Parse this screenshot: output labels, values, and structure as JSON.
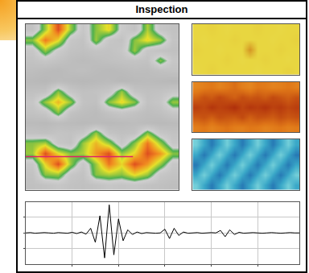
{
  "header": {
    "title": "Inspection"
  },
  "chart_data": [
    {
      "type": "heatmap",
      "xlim": [
        -0.5,
        11.5
      ],
      "ylim": [
        15.5,
        -0.5
      ],
      "zlim": [
        0,
        100
      ],
      "tick_labels": false,
      "cells": [
        [
          30,
          60,
          92,
          60,
          35,
          58,
          70,
          40,
          30,
          62,
          35,
          30
        ],
        [
          58,
          85,
          70,
          35,
          30,
          60,
          35,
          30,
          58,
          70,
          60,
          32
        ],
        [
          35,
          60,
          40,
          30,
          28,
          32,
          30,
          35,
          60,
          35,
          30,
          28
        ],
        [
          30,
          35,
          30,
          25,
          22,
          25,
          28,
          30,
          32,
          30,
          58,
          35
        ],
        [
          25,
          22,
          20,
          24,
          26,
          22,
          20,
          22,
          25,
          24,
          28,
          30
        ],
        [
          20,
          18,
          22,
          20,
          18,
          20,
          22,
          18,
          20,
          22,
          20,
          18
        ],
        [
          28,
          30,
          58,
          35,
          28,
          30,
          35,
          60,
          32,
          28,
          30,
          35
        ],
        [
          35,
          60,
          75,
          60,
          30,
          28,
          58,
          70,
          58,
          30,
          35,
          60
        ],
        [
          30,
          35,
          58,
          30,
          25,
          22,
          30,
          35,
          30,
          25,
          28,
          35
        ],
        [
          22,
          20,
          24,
          22,
          20,
          22,
          20,
          22,
          24,
          22,
          20,
          22
        ],
        [
          30,
          28,
          32,
          30,
          35,
          60,
          32,
          28,
          30,
          58,
          35,
          30
        ],
        [
          58,
          62,
          35,
          30,
          60,
          75,
          60,
          35,
          58,
          85,
          60,
          35
        ],
        [
          60,
          92,
          70,
          58,
          62,
          80,
          92,
          60,
          70,
          92,
          80,
          58
        ],
        [
          35,
          70,
          92,
          60,
          35,
          60,
          85,
          70,
          92,
          80,
          60,
          35
        ],
        [
          30,
          58,
          60,
          35,
          30,
          58,
          62,
          58,
          70,
          60,
          35,
          30
        ],
        [
          28,
          30,
          35,
          30,
          28,
          30,
          35,
          32,
          35,
          30,
          28,
          25
        ]
      ]
    },
    {
      "type": "heatmap",
      "xlim": [
        -0.5,
        13.5
      ],
      "ylim": [
        4.5,
        -0.5
      ],
      "zlim": [
        0,
        100
      ],
      "tick_labels": false,
      "cells": [
        [
          50,
          50,
          52,
          50,
          48,
          50,
          50,
          50,
          52,
          50,
          50,
          48,
          50,
          50
        ],
        [
          50,
          48,
          50,
          50,
          50,
          52,
          50,
          50,
          50,
          50,
          48,
          50,
          50,
          52
        ],
        [
          52,
          50,
          50,
          48,
          50,
          50,
          50,
          80,
          50,
          50,
          50,
          52,
          50,
          50
        ],
        [
          50,
          50,
          50,
          50,
          52,
          50,
          48,
          50,
          50,
          52,
          50,
          50,
          48,
          50
        ],
        [
          48,
          50,
          52,
          50,
          50,
          50,
          50,
          50,
          48,
          50,
          50,
          50,
          52,
          50
        ]
      ]
    },
    {
      "type": "heatmap",
      "xlim": [
        -0.5,
        13.5
      ],
      "ylim": [
        4.5,
        -0.5
      ],
      "zlim": [
        0,
        100
      ],
      "tick_labels": false,
      "cells": [
        [
          40,
          45,
          50,
          42,
          48,
          55,
          45,
          40,
          50,
          48,
          42,
          45,
          50,
          44
        ],
        [
          60,
          70,
          65,
          75,
          68,
          62,
          72,
          66,
          70,
          64,
          74,
          68,
          62,
          70
        ],
        [
          80,
          75,
          85,
          78,
          82,
          88,
          76,
          84,
          80,
          86,
          78,
          82,
          75,
          80
        ],
        [
          65,
          70,
          62,
          72,
          68,
          66,
          74,
          62,
          70,
          68,
          64,
          72,
          66,
          70
        ],
        [
          45,
          50,
          42,
          48,
          52,
          46,
          44,
          50,
          48,
          42,
          46,
          50,
          44,
          48
        ]
      ]
    },
    {
      "type": "heatmap",
      "xlim": [
        -0.5,
        13.5
      ],
      "ylim": [
        4.5,
        -0.5
      ],
      "zlim": [
        0,
        100
      ],
      "tick_labels": false,
      "cells": [
        [
          85,
          50,
          20,
          50,
          85,
          50,
          20,
          50,
          85,
          50,
          20,
          50,
          85,
          50
        ],
        [
          50,
          20,
          50,
          85,
          50,
          20,
          50,
          85,
          50,
          20,
          50,
          85,
          50,
          20
        ],
        [
          20,
          50,
          85,
          50,
          20,
          50,
          85,
          50,
          20,
          50,
          85,
          50,
          20,
          50
        ],
        [
          50,
          85,
          50,
          20,
          50,
          85,
          50,
          20,
          50,
          85,
          50,
          20,
          50,
          85
        ],
        [
          85,
          50,
          20,
          50,
          85,
          50,
          20,
          50,
          85,
          50,
          20,
          50,
          85,
          50
        ]
      ]
    },
    {
      "type": "line",
      "color": "#000000",
      "grid": true,
      "tick_labels": false,
      "xlim": [
        0,
        59
      ],
      "ylim": [
        -100,
        100
      ],
      "xticks": [
        10,
        20,
        30,
        40,
        50
      ],
      "yticks": [
        -50,
        0,
        50
      ],
      "x": [
        0,
        1,
        2,
        3,
        4,
        5,
        6,
        7,
        8,
        9,
        10,
        11,
        12,
        13,
        14,
        15,
        16,
        17,
        18,
        19,
        20,
        21,
        22,
        23,
        24,
        25,
        26,
        27,
        28,
        29,
        30,
        31,
        32,
        33,
        34,
        35,
        36,
        37,
        38,
        39,
        40,
        41,
        42,
        43,
        44,
        45,
        46,
        47,
        48,
        49,
        50,
        51,
        52,
        53,
        54,
        55,
        56,
        57,
        58,
        59
      ],
      "values": [
        0,
        1,
        -1,
        0,
        1,
        0,
        -1,
        1,
        0,
        -1,
        2,
        -2,
        3,
        -4,
        15,
        -30,
        55,
        -80,
        90,
        -70,
        45,
        -25,
        10,
        -5,
        3,
        -2,
        1,
        0,
        -1,
        0,
        12,
        -18,
        15,
        -8,
        3,
        -1,
        0,
        1,
        -1,
        0,
        1,
        0,
        8,
        -12,
        10,
        -5,
        2,
        -1,
        0,
        1,
        0,
        -1,
        0,
        1,
        0,
        -1,
        0,
        1,
        0,
        0
      ]
    }
  ]
}
